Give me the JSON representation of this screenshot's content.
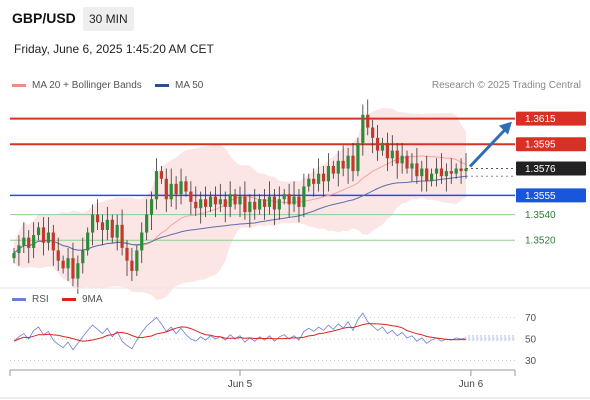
{
  "header": {
    "pair": "GBP/USD",
    "timeframe": "30 MIN"
  },
  "datetime": "Friday, June 6, 2025 1:45:20 AM CET",
  "legend": [
    {
      "label": "MA 20 + Bollinger Bands",
      "color": "#f28b82"
    },
    {
      "label": "MA 50",
      "color": "#2e4f8f"
    }
  ],
  "copyright": "Research © 2025 Trading Central",
  "rsi_legend": [
    {
      "label": "RSI",
      "color": "#6b7fd7"
    },
    {
      "label": "9MA",
      "color": "#e02020"
    }
  ],
  "colors": {
    "up": "#2e8b3a",
    "down": "#c0392b",
    "resistance": "#d93025",
    "support": "#1a56db",
    "target": "#2f6db5"
  },
  "chart_data": [
    {
      "type": "candlestick",
      "ylim": [
        1.3485,
        1.3635
      ],
      "x_ticks": [
        {
          "label": "Jun 5",
          "index": 46
        },
        {
          "label": "Jun 6",
          "index": 93
        }
      ],
      "levels": [
        {
          "value": 1.3615,
          "label": "1.3615",
          "kind": "resistance"
        },
        {
          "value": 1.3595,
          "label": "1.3595",
          "kind": "resistance"
        },
        {
          "value": 1.3576,
          "label": "1.3576",
          "kind": "current"
        },
        {
          "value": 1.3555,
          "label": "1.3555",
          "kind": "support"
        },
        {
          "value": 1.354,
          "label": "1.3540",
          "kind": "minor"
        },
        {
          "value": 1.352,
          "label": "1.3520",
          "kind": "minor"
        }
      ],
      "closes": [
        1.351,
        1.3516,
        1.3522,
        1.3514,
        1.3524,
        1.353,
        1.3518,
        1.3526,
        1.3512,
        1.3504,
        1.3498,
        1.3506,
        1.349,
        1.3502,
        1.3512,
        1.3526,
        1.354,
        1.3534,
        1.3528,
        1.3536,
        1.3522,
        1.3532,
        1.3514,
        1.3504,
        1.3496,
        1.3512,
        1.3526,
        1.354,
        1.3552,
        1.3574,
        1.3568,
        1.3552,
        1.3564,
        1.3556,
        1.3566,
        1.3558,
        1.355,
        1.3545,
        1.3552,
        1.3546,
        1.3554,
        1.3548,
        1.3552,
        1.3546,
        1.3556,
        1.3548,
        1.3554,
        1.3542,
        1.355,
        1.3544,
        1.3552,
        1.3546,
        1.3554,
        1.3544,
        1.3552,
        1.3556,
        1.3548,
        1.3554,
        1.3546,
        1.3562,
        1.3568,
        1.3564,
        1.3572,
        1.3566,
        1.3578,
        1.3572,
        1.3582,
        1.3576,
        1.3586,
        1.3574,
        1.3596,
        1.3618,
        1.3608,
        1.36,
        1.359,
        1.3596,
        1.3584,
        1.359,
        1.358,
        1.3586,
        1.3576,
        1.358,
        1.357,
        1.3576,
        1.3566,
        1.3572,
        1.3576,
        1.357,
        1.3574,
        1.3572,
        1.3576,
        1.3574,
        1.3576
      ]
    },
    {
      "type": "line",
      "name": "RSI",
      "ylim": [
        25,
        75
      ],
      "y_ticks": [
        70,
        50,
        30
      ],
      "rsi": [
        48,
        52,
        55,
        50,
        58,
        61,
        54,
        57,
        49,
        45,
        42,
        47,
        40,
        46,
        52,
        58,
        63,
        59,
        55,
        60,
        52,
        57,
        48,
        44,
        41,
        49,
        56,
        62,
        66,
        70,
        64,
        57,
        61,
        55,
        60,
        54,
        50,
        48,
        52,
        49,
        53,
        50,
        52,
        49,
        54,
        50,
        53,
        47,
        51,
        48,
        52,
        49,
        53,
        48,
        52,
        54,
        50,
        53,
        49,
        57,
        60,
        57,
        61,
        58,
        63,
        59,
        64,
        60,
        66,
        58,
        68,
        74,
        66,
        62,
        58,
        61,
        55,
        58,
        53,
        56,
        51,
        53,
        48,
        51,
        46,
        49,
        51,
        48,
        50,
        49,
        51,
        50,
        51
      ]
    }
  ]
}
